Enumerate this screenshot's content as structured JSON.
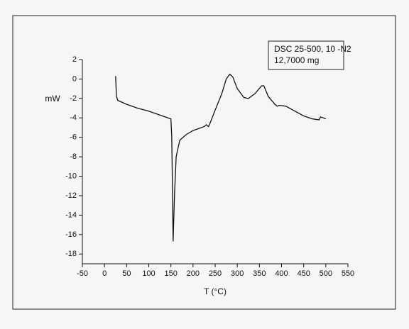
{
  "chart_data": {
    "type": "line",
    "x_label": "T (°C)",
    "y_label": "mW",
    "annotations": [
      "DSC 25-500, 10 -N2",
      "12,7000 mg"
    ],
    "x": [
      25,
      27,
      30,
      50,
      75,
      100,
      125,
      150,
      152,
      155,
      158,
      162,
      170,
      185,
      200,
      225,
      230,
      235,
      238,
      250,
      265,
      275,
      283,
      290,
      300,
      315,
      325,
      340,
      355,
      360,
      370,
      385,
      390,
      395,
      410,
      430,
      450,
      470,
      485,
      488,
      495,
      500
    ],
    "values": [
      0.3,
      -1.8,
      -2.2,
      -2.6,
      -3.0,
      -3.3,
      -3.7,
      -4.1,
      -6,
      -16.7,
      -12,
      -8,
      -6.3,
      -5.7,
      -5.3,
      -4.9,
      -4.7,
      -4.9,
      -4.6,
      -3.2,
      -1.5,
      0,
      0.5,
      0.2,
      -1,
      -1.9,
      -2.0,
      -1.5,
      -0.7,
      -0.7,
      -1.8,
      -2.6,
      -2.8,
      -2.7,
      -2.8,
      -3.3,
      -3.8,
      -4.1,
      -4.2,
      -3.9,
      -4.0,
      -4.1
    ],
    "color": "#111111",
    "xlim": [
      -50,
      550
    ],
    "xticks": [
      -50,
      0,
      50,
      100,
      150,
      200,
      250,
      300,
      350,
      400,
      450,
      500,
      550
    ],
    "ylim": [
      -19,
      2
    ],
    "yticks": [
      2,
      0,
      -2,
      -4,
      -6,
      -8,
      -10,
      -12,
      -14,
      -16,
      -18
    ]
  }
}
